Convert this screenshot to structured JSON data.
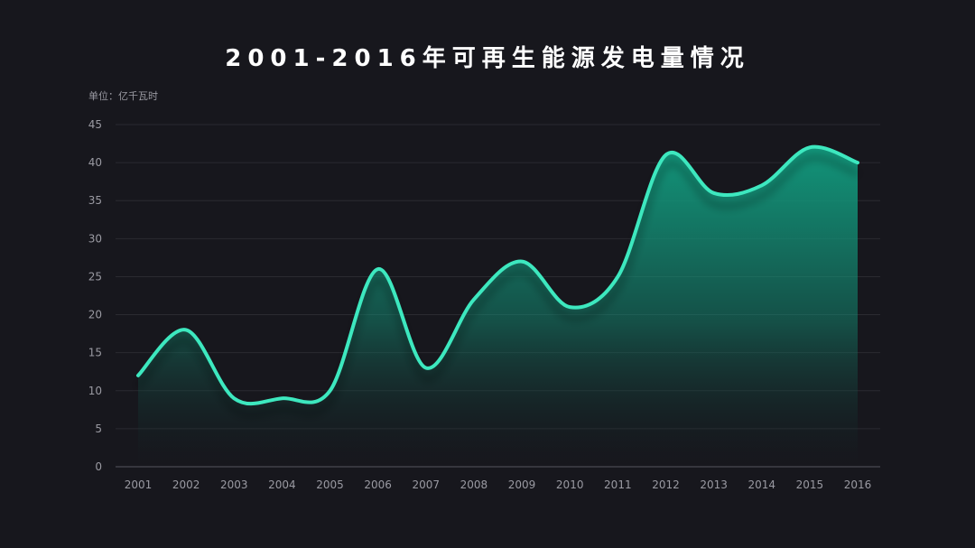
{
  "colors": {
    "background": "#17171d",
    "line": "#3ee8bf",
    "area_top": "#12957a",
    "area_bottom": "#15161b",
    "grid": "#2a2a31",
    "axis": "#55555e",
    "text": "#9a9aa2",
    "title": "#ffffff"
  },
  "chart_data": {
    "type": "area",
    "title": "2001-2016年可再生能源发电量情况",
    "unit": "单位：亿千瓦时",
    "xlabel": "",
    "ylabel": "",
    "categories": [
      "2001",
      "2002",
      "2003",
      "2004",
      "2005",
      "2006",
      "2007",
      "2008",
      "2009",
      "2010",
      "2011",
      "2012",
      "2013",
      "2014",
      "2015",
      "2016"
    ],
    "values": [
      12,
      18,
      9,
      9,
      10,
      26,
      13,
      22,
      27,
      21,
      25,
      41,
      36,
      37,
      42,
      40
    ],
    "ylim": [
      0,
      45
    ],
    "yticks": [
      0,
      5,
      10,
      15,
      20,
      25,
      30,
      35,
      40,
      45
    ],
    "grid": true,
    "legend": "none",
    "smooth": true
  }
}
